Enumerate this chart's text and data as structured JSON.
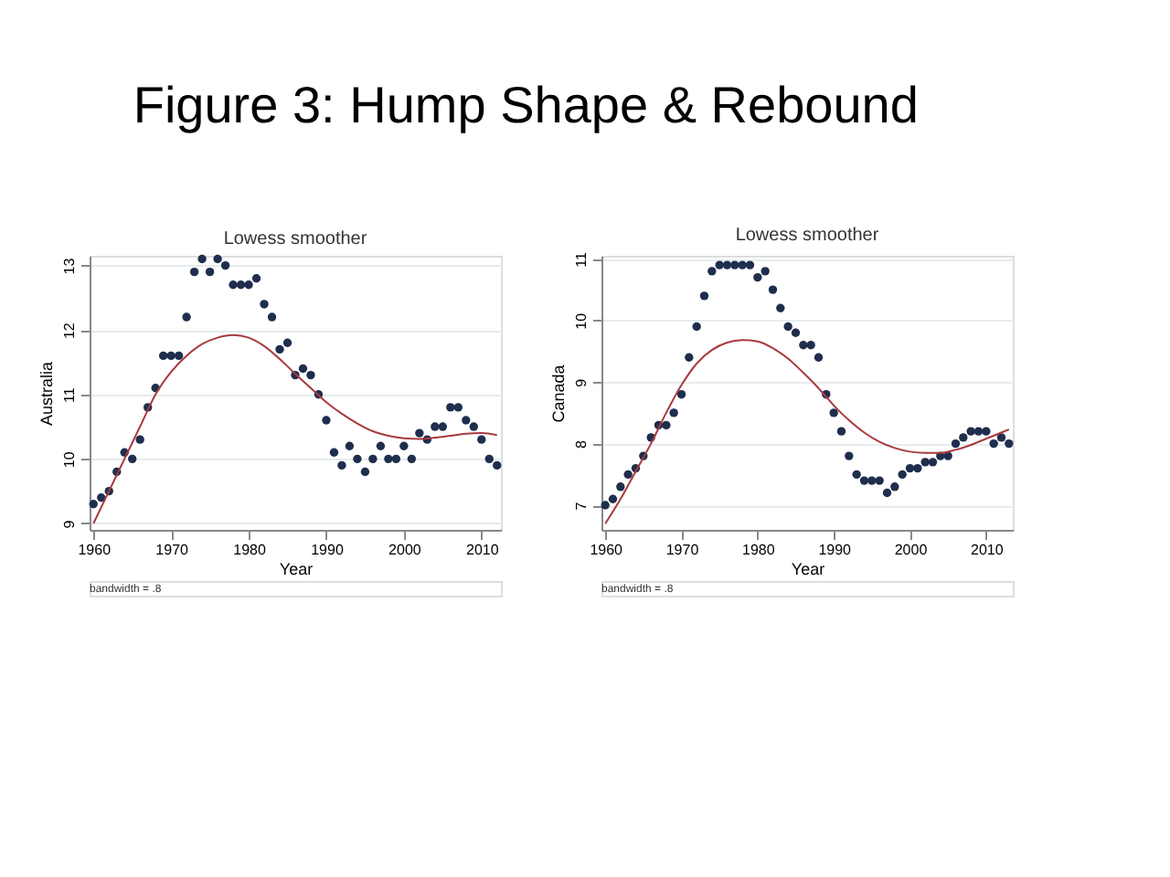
{
  "chart_data": [
    {
      "type": "scatter",
      "title": "Lowess smoother",
      "xlabel": "Year",
      "ylabel": "Australia",
      "annotations": [
        "Figure 3: Hump Shape & Rebound",
        "bandwidth = .8"
      ],
      "x": [
        1960,
        1961,
        1962,
        1963,
        1964,
        1965,
        1966,
        1967,
        1968,
        1969,
        1970,
        1971,
        1972,
        1973,
        1974,
        1975,
        1976,
        1977,
        1978,
        1979,
        1980,
        1981,
        1982,
        1983,
        1984,
        1985,
        1986,
        1987,
        1988,
        1989,
        1990,
        1991,
        1992,
        1993,
        1994,
        1995,
        1996,
        1997,
        1998,
        1999,
        2000,
        2001,
        2002,
        2003,
        2004,
        2005,
        2006,
        2007,
        2008,
        2009,
        2010,
        2011,
        2012
      ],
      "series": [
        {
          "marker": "circle",
          "color": "#1f2e4d",
          "values": [
            9.3,
            9.4,
            9.5,
            9.8,
            10.1,
            10.0,
            10.3,
            10.8,
            11.1,
            11.6,
            11.6,
            11.6,
            12.2,
            12.9,
            13.1,
            12.9,
            13.1,
            13.0,
            12.7,
            12.7,
            12.7,
            12.8,
            12.4,
            12.2,
            11.7,
            11.8,
            11.3,
            11.4,
            11.3,
            11.0,
            10.6,
            10.1,
            9.9,
            10.2,
            10.0,
            9.8,
            10.0,
            10.2,
            10.0,
            10.0,
            10.2,
            10.0,
            10.4,
            10.3,
            10.5,
            10.5,
            10.8,
            10.8,
            10.6,
            10.5,
            10.3,
            10.0,
            9.9
          ]
        },
        {
          "type": "line",
          "color": "#a83a3e",
          "x": [
            1960,
            1962,
            1964,
            1966,
            1968,
            1970,
            1972,
            1974,
            1976,
            1978,
            1980,
            1982,
            1984,
            1986,
            1988,
            1990,
            1992,
            1994,
            1996,
            1998,
            2000,
            2002,
            2004,
            2006,
            2008,
            2010,
            2012
          ],
          "values": [
            9.0,
            9.5,
            10.0,
            10.5,
            11.0,
            11.35,
            11.6,
            11.78,
            11.88,
            11.92,
            11.88,
            11.75,
            11.55,
            11.32,
            11.1,
            10.88,
            10.7,
            10.55,
            10.43,
            10.36,
            10.32,
            10.31,
            10.33,
            10.36,
            10.39,
            10.4,
            10.37
          ]
        }
      ],
      "xlim": [
        1959.5,
        2012.5
      ],
      "xticks": [
        1960,
        1970,
        1980,
        1990,
        2000,
        2010
      ],
      "ylim": [
        8.9,
        13.15
      ],
      "yticks": [
        9,
        10,
        11,
        12,
        13
      ],
      "grid": "y"
    },
    {
      "type": "scatter",
      "title": "Lowess smoother",
      "xlabel": "Year",
      "ylabel": "Canada",
      "annotations": [
        "bandwidth = .8"
      ],
      "x": [
        1960,
        1961,
        1962,
        1963,
        1964,
        1965,
        1966,
        1967,
        1968,
        1969,
        1970,
        1971,
        1972,
        1973,
        1974,
        1975,
        1976,
        1977,
        1978,
        1979,
        1980,
        1981,
        1982,
        1983,
        1984,
        1985,
        1986,
        1987,
        1988,
        1989,
        1990,
        1991,
        1992,
        1993,
        1994,
        1995,
        1996,
        1997,
        1998,
        1999,
        2000,
        2001,
        2002,
        2003,
        2004,
        2005,
        2006,
        2007,
        2008,
        2009,
        2010,
        2011,
        2012,
        2013
      ],
      "series": [
        {
          "marker": "circle",
          "color": "#1f2e4d",
          "values": [
            7.0,
            7.1,
            7.3,
            7.5,
            7.6,
            7.8,
            8.1,
            8.3,
            8.3,
            8.5,
            8.8,
            9.4,
            9.9,
            10.4,
            10.8,
            10.9,
            10.9,
            10.9,
            10.9,
            10.9,
            10.7,
            10.8,
            10.5,
            10.2,
            9.9,
            9.8,
            9.6,
            9.6,
            9.4,
            8.8,
            8.5,
            8.2,
            7.8,
            7.5,
            7.4,
            7.4,
            7.4,
            7.2,
            7.3,
            7.5,
            7.6,
            7.6,
            7.7,
            7.7,
            7.8,
            7.8,
            8.0,
            8.1,
            8.2,
            8.2,
            8.2,
            8.0,
            8.1,
            8.0
          ]
        },
        {
          "type": "line",
          "color": "#a83a3e",
          "x": [
            1960,
            1962,
            1964,
            1966,
            1968,
            1970,
            1972,
            1974,
            1976,
            1978,
            1980,
            1982,
            1984,
            1986,
            1988,
            1990,
            1992,
            1994,
            1996,
            1998,
            2000,
            2002,
            2004,
            2006,
            2008,
            2010,
            2012,
            2013
          ],
          "values": [
            6.7,
            7.1,
            7.55,
            8.0,
            8.5,
            8.95,
            9.3,
            9.52,
            9.64,
            9.68,
            9.66,
            9.55,
            9.38,
            9.15,
            8.9,
            8.62,
            8.38,
            8.18,
            8.03,
            7.93,
            7.87,
            7.85,
            7.85,
            7.9,
            7.98,
            8.08,
            8.18,
            8.23
          ]
        }
      ],
      "xlim": [
        1959.5,
        2013.5
      ],
      "xticks": [
        1960,
        1970,
        1980,
        1990,
        2000,
        2010
      ],
      "ylim": [
        6.6,
        11.05
      ],
      "yticks": [
        7,
        8,
        9,
        10,
        11
      ],
      "grid": "y"
    }
  ]
}
